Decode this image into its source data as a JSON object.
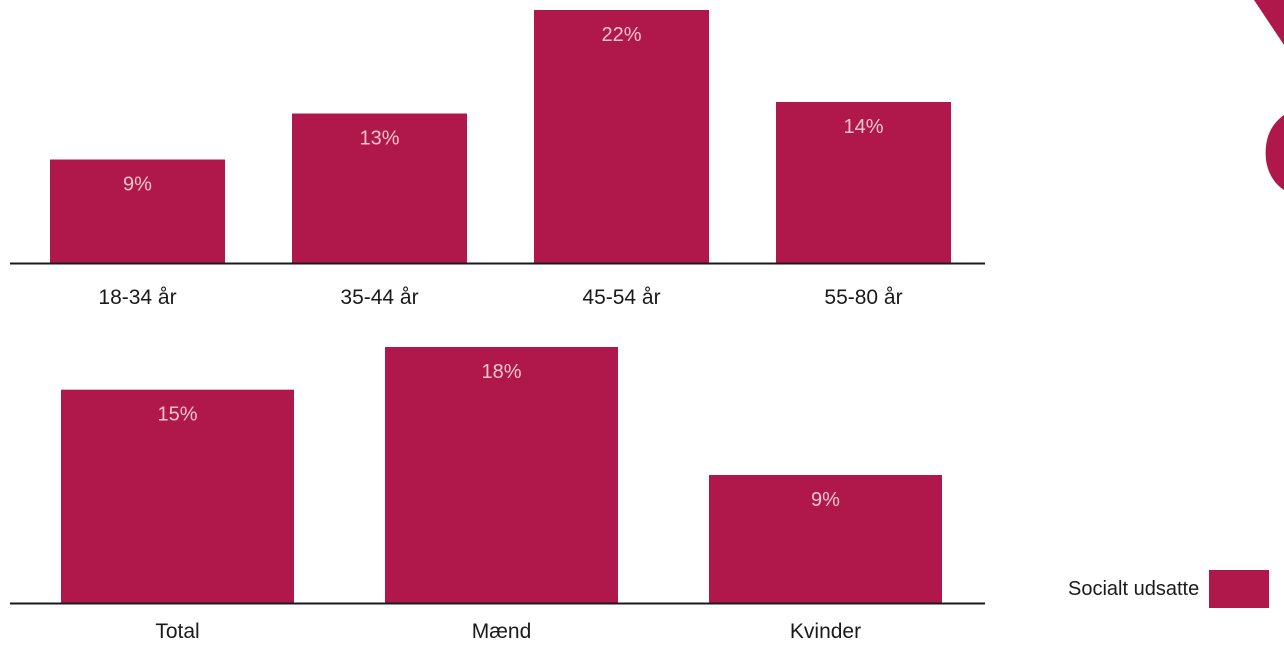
{
  "colors": {
    "bar": "#b0184c",
    "label": "#f3c6cf",
    "axis": "#1a1a1a",
    "text": "#1a1a1a"
  },
  "legend": {
    "label": "Socialt udsatte",
    "color": "#b0184c"
  },
  "chart_data": [
    {
      "type": "bar",
      "categories": [
        "18-34 år",
        "35-44 år",
        "45-54 år",
        "55-80 år"
      ],
      "values": [
        9,
        13,
        22,
        14
      ],
      "value_labels": [
        "9%",
        "13%",
        "22%",
        "14%"
      ],
      "ylim": [
        0,
        22
      ],
      "series": [
        {
          "name": "Socialt udsatte",
          "values": [
            9,
            13,
            22,
            14
          ]
        }
      ]
    },
    {
      "type": "bar",
      "categories": [
        "Total",
        "Mænd",
        "Kvinder"
      ],
      "values": [
        15,
        18,
        9
      ],
      "value_labels": [
        "15%",
        "18%",
        "9%"
      ],
      "ylim": [
        0,
        18
      ],
      "series": [
        {
          "name": "Socialt udsatte",
          "values": [
            15,
            18,
            9
          ]
        }
      ]
    }
  ]
}
